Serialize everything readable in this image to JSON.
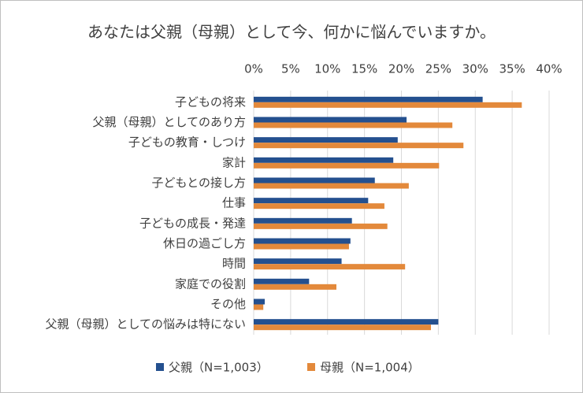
{
  "chart_data": {
    "type": "bar",
    "orientation": "horizontal",
    "title": "あなたは父親（母親）として今、何かに悩んでいますか。",
    "categories": [
      "子どもの将来",
      "父親（母親）としてのあり方",
      "子どもの教育・しつけ",
      "家計",
      "子どもとの接し方",
      "仕事",
      "子どもの成長・発達",
      "休日の過ごし方",
      "時間",
      "家庭での役割",
      "その他",
      "父親（母親）としての悩みは特にない"
    ],
    "series": [
      {
        "name": "父親（N=1,003）",
        "color": "#24508f",
        "values": [
          31,
          20.7,
          19.5,
          18.9,
          16.4,
          15.5,
          13.3,
          13.1,
          11.9,
          7.5,
          1.5,
          25.0
        ]
      },
      {
        "name": "母親（N=1,004）",
        "color": "#e3893b",
        "values": [
          36.3,
          26.9,
          28.4,
          25.1,
          21.0,
          17.7,
          18.1,
          12.9,
          20.5,
          11.2,
          1.3,
          24.0
        ]
      }
    ],
    "xlim": [
      0,
      40
    ],
    "xticks": [
      {
        "value": 0,
        "label": "0%"
      },
      {
        "value": 5,
        "label": "5%"
      },
      {
        "value": 10,
        "label": "10%"
      },
      {
        "value": 15,
        "label": "15%"
      },
      {
        "value": 20,
        "label": "20%"
      },
      {
        "value": 25,
        "label": "25%"
      },
      {
        "value": 30,
        "label": "30%"
      },
      {
        "value": 35,
        "label": "35%"
      },
      {
        "value": 40,
        "label": "40%"
      }
    ],
    "grid": true,
    "legend": "bottom"
  }
}
